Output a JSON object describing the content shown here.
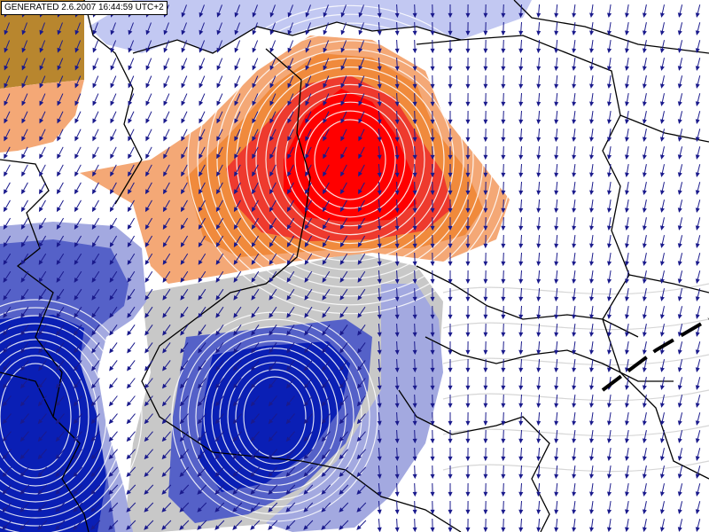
{
  "timestamp_label": "GENERATED 2.6.2007 16:44:59 UTC+2",
  "colors": {
    "background": "#ffffff",
    "warm_outer": "#f4a876",
    "warm_mid": "#f08a3c",
    "warm_high": "#ee3a2e",
    "warm_peak": "#ff0000",
    "cool_outer": "#a3a9e0",
    "cool_mid": "#5561c8",
    "cool_core": "#0a1fb5",
    "neutral": "#c8c8c8",
    "corner_high": "#b8862e",
    "sea_tint": "#c2c8f2",
    "border_line": "#000000",
    "isoline": "#ffffff",
    "wind_barb": "#1a1a8c"
  },
  "layers": [
    "temperature-shading",
    "isolines",
    "country-borders",
    "wind-arrows",
    "frontal-line"
  ]
}
